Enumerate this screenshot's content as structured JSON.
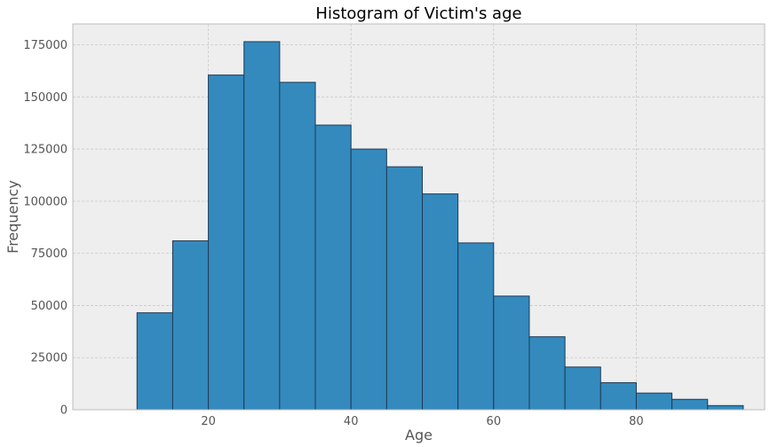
{
  "chart_data": {
    "type": "bar",
    "title": "Histogram of Victim's age",
    "xlabel": "Age",
    "ylabel": "Frequency",
    "bin_edges": [
      10,
      15,
      20,
      25,
      30,
      35,
      40,
      45,
      50,
      55,
      60,
      65,
      70,
      75,
      80,
      85,
      90,
      95
    ],
    "values": [
      46500,
      81000,
      160500,
      176500,
      157000,
      136500,
      125000,
      116500,
      103500,
      80000,
      54500,
      35000,
      20500,
      13000,
      8000,
      5000,
      2000
    ],
    "xlim": [
      1,
      98
    ],
    "ylim": [
      0,
      185000
    ],
    "xticks": [
      20,
      40,
      60,
      80
    ],
    "xtick_labels": [
      "20",
      "40",
      "60",
      "80"
    ],
    "yticks": [
      0,
      25000,
      50000,
      75000,
      100000,
      125000,
      150000,
      175000
    ],
    "ytick_labels": [
      "0",
      "25000",
      "50000",
      "75000",
      "100000",
      "125000",
      "150000",
      "175000"
    ],
    "grid": true,
    "bar_color": "#348ABD",
    "bar_edge_color": "#1f3b55",
    "plot_background": "#EEEEEE",
    "grid_color": "#C8C8C8"
  }
}
